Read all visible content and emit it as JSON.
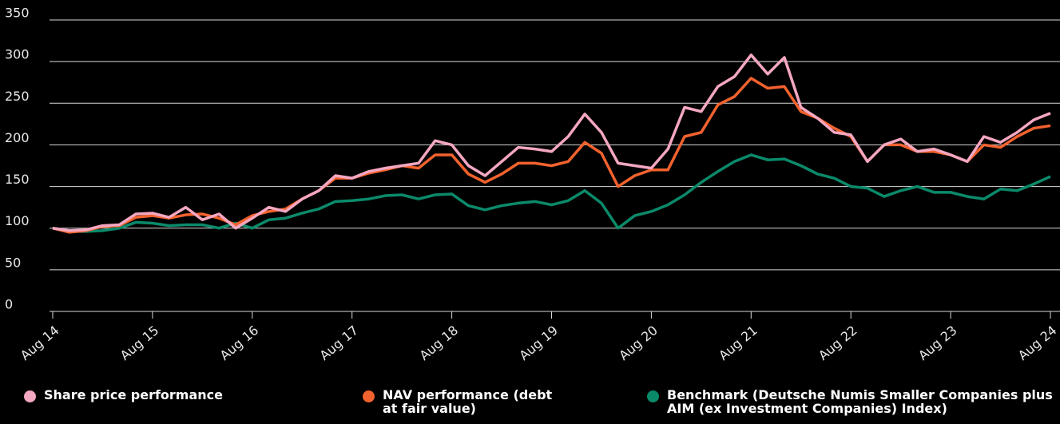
{
  "chart_data": {
    "type": "line",
    "categories": [
      "Aug 14",
      null,
      null,
      null,
      null,
      null,
      "Aug 15",
      null,
      null,
      null,
      null,
      null,
      "Aug 16",
      null,
      null,
      null,
      null,
      null,
      "Aug 17",
      null,
      null,
      null,
      null,
      null,
      "Aug 18",
      null,
      null,
      null,
      null,
      null,
      "Aug 19",
      null,
      null,
      null,
      null,
      null,
      "Aug 20",
      null,
      null,
      null,
      null,
      null,
      "Aug 21",
      null,
      null,
      null,
      null,
      null,
      "Aug 22",
      null,
      null,
      null,
      null,
      null,
      "Aug 23",
      null,
      null,
      null,
      null,
      null,
      "Aug 24"
    ],
    "series": [
      {
        "name": "Share price performance",
        "color": "#f4a7c1",
        "values": [
          100,
          97,
          98,
          103,
          104,
          117,
          118,
          113,
          125,
          110,
          117,
          100,
          112,
          125,
          120,
          135,
          145,
          163,
          160,
          168,
          172,
          175,
          178,
          205,
          200,
          175,
          163,
          180,
          197,
          195,
          192,
          210,
          237,
          215,
          178,
          175,
          172,
          195,
          245,
          240,
          270,
          282,
          308,
          285,
          305,
          245,
          232,
          215,
          212,
          180,
          200,
          207,
          192,
          195,
          188,
          180,
          210,
          203,
          215,
          230,
          238
        ]
      },
      {
        "name": "NAV performance (debt at fair value)",
        "color": "#f2622e",
        "values": [
          100,
          95,
          97,
          102,
          103,
          113,
          115,
          112,
          116,
          117,
          112,
          104,
          115,
          120,
          123,
          135,
          145,
          160,
          160,
          166,
          170,
          175,
          172,
          188,
          188,
          165,
          155,
          165,
          178,
          178,
          175,
          180,
          203,
          190,
          150,
          163,
          170,
          170,
          210,
          215,
          248,
          258,
          280,
          268,
          270,
          240,
          232,
          220,
          210,
          180,
          200,
          200,
          192,
          192,
          188,
          180,
          200,
          197,
          210,
          220,
          223
        ]
      },
      {
        "name": "Benchmark (Deutsche Numis Smaller Companies plus AIM (ex Investment Companies) Index)",
        "color": "#0b8a6a",
        "values": [
          100,
          96,
          96,
          97,
          100,
          107,
          106,
          103,
          104,
          104,
          100,
          106,
          100,
          110,
          112,
          118,
          123,
          132,
          133,
          135,
          139,
          140,
          135,
          140,
          141,
          127,
          122,
          127,
          130,
          132,
          128,
          133,
          145,
          130,
          100,
          115,
          120,
          128,
          140,
          155,
          168,
          180,
          188,
          182,
          183,
          175,
          165,
          160,
          150,
          148,
          138,
          145,
          150,
          143,
          143,
          138,
          135,
          147,
          145,
          153,
          162
        ]
      }
    ],
    "ylim": [
      0,
      350
    ],
    "yticks": [
      0,
      50,
      100,
      150,
      200,
      250,
      300,
      350
    ],
    "grid": true
  }
}
